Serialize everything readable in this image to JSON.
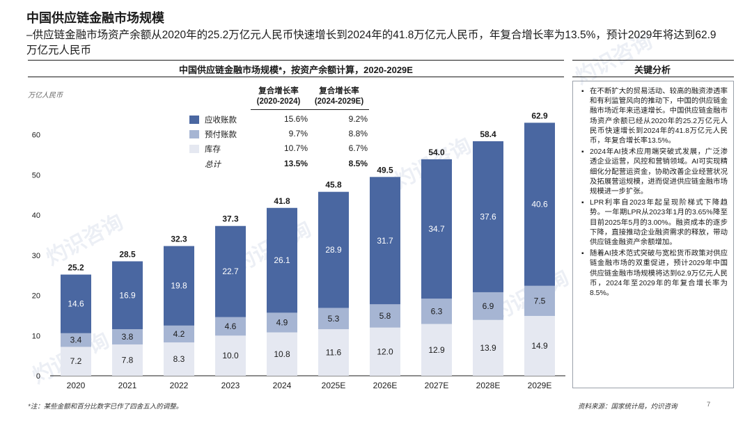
{
  "page": {
    "title": "中国供应链金融市场规模",
    "subtitle": "–供应链金融市场资产余额从2020年的25.2万亿元人民币快速增长到2024年的41.8万亿元人民币，年复合增长率为13.5%，预计2029年将达到62.9万亿元人民币",
    "footnote": "*注：某些金额和百分比数字已作了四舍五入的调整。",
    "source": "资料来源：国家统计局，灼识咨询",
    "page_number": "7",
    "watermark_text": "灼识咨询"
  },
  "colors": {
    "receivables": "#4a67a1",
    "prepayments": "#a6b5d3",
    "inventory": "#e5e8f1",
    "axis": "#1a1a1a",
    "bar_label_dark": "#1a1a1a",
    "bar_label_light": "#ffffff"
  },
  "cagr_table": {
    "header_1": "复合增长率",
    "header_1_period": "(2020-2024)",
    "header_2": "复合增长率",
    "header_2_period": "(2024-2029E)",
    "rows": [
      {
        "label": "应收账款",
        "c1": "15.6%",
        "c2": "9.2%"
      },
      {
        "label": "预付账款",
        "c1": "9.7%",
        "c2": "8.8%"
      },
      {
        "label": "库存",
        "c1": "10.7%",
        "c2": "6.7%"
      },
      {
        "label": "总计",
        "c1": "13.5%",
        "c2": "8.5%"
      }
    ]
  },
  "key_analysis": {
    "title": "关键分析",
    "bullets": [
      "在不断扩大的贸易活动、较高的融资渗透率和有利监管风向的推动下，中国的供应链金融市场近年来迅速增长。中国供应链金融市场资产余额已经从2020年的25.2万亿元人民币快速增长到2024年的41.8万亿元人民币，年复合增长率13.5%。",
      "2024年AI技术应用端突破式发展，广泛渗透企业运营，风控和营销领域。AI可实现精细化分配营运资金，协助改善企业经营状况及拓展营运规模，进而促进供应链金融市场规模进一步扩张。",
      "LPR利率自2023年起呈现阶梯式下降趋势。一年期LPR从2023年1月的3.65%降至目前2025年5月的3.00%。融资成本的逐步下降，直接推动企业融资需求的释放，带动供应链金融资产余额增加。",
      "随着AI技术范式突破与宽松货币政策对供应链金融市场的双重促进，预计2029年中国供应链金融市场规模将达到62.9万亿元人民币，2024年至2029年的年复合增长率为8.5%。"
    ]
  },
  "chart_data": {
    "type": "bar",
    "stacked": true,
    "title": "中国供应链金融市场规模*，按资产余额计算，2020-2029E",
    "ylabel": "万亿人民币",
    "xlabel": "",
    "ylim": [
      0,
      70
    ],
    "yticks": [
      0,
      10,
      20,
      30,
      40,
      50,
      60
    ],
    "grid": false,
    "legend_position": "top-left",
    "categories": [
      "2020",
      "2021",
      "2022",
      "2023",
      "2024",
      "2025E",
      "2026E",
      "2027E",
      "2028E",
      "2029E"
    ],
    "series": [
      {
        "name": "库存",
        "color_key": "inventory",
        "values": [
          7.2,
          7.8,
          8.3,
          10.0,
          10.8,
          11.6,
          12.0,
          12.9,
          13.9,
          14.9
        ]
      },
      {
        "name": "预付账款",
        "color_key": "prepayments",
        "values": [
          3.4,
          3.8,
          4.2,
          4.6,
          4.9,
          5.3,
          5.8,
          6.3,
          6.9,
          7.5
        ]
      },
      {
        "name": "应收账款",
        "color_key": "receivables",
        "values": [
          14.6,
          16.9,
          19.8,
          22.7,
          26.1,
          28.9,
          31.7,
          34.7,
          37.6,
          40.6
        ]
      }
    ],
    "totals": [
      25.2,
      28.5,
      32.3,
      37.3,
      41.8,
      45.8,
      49.5,
      54.0,
      58.4,
      62.9
    ]
  }
}
